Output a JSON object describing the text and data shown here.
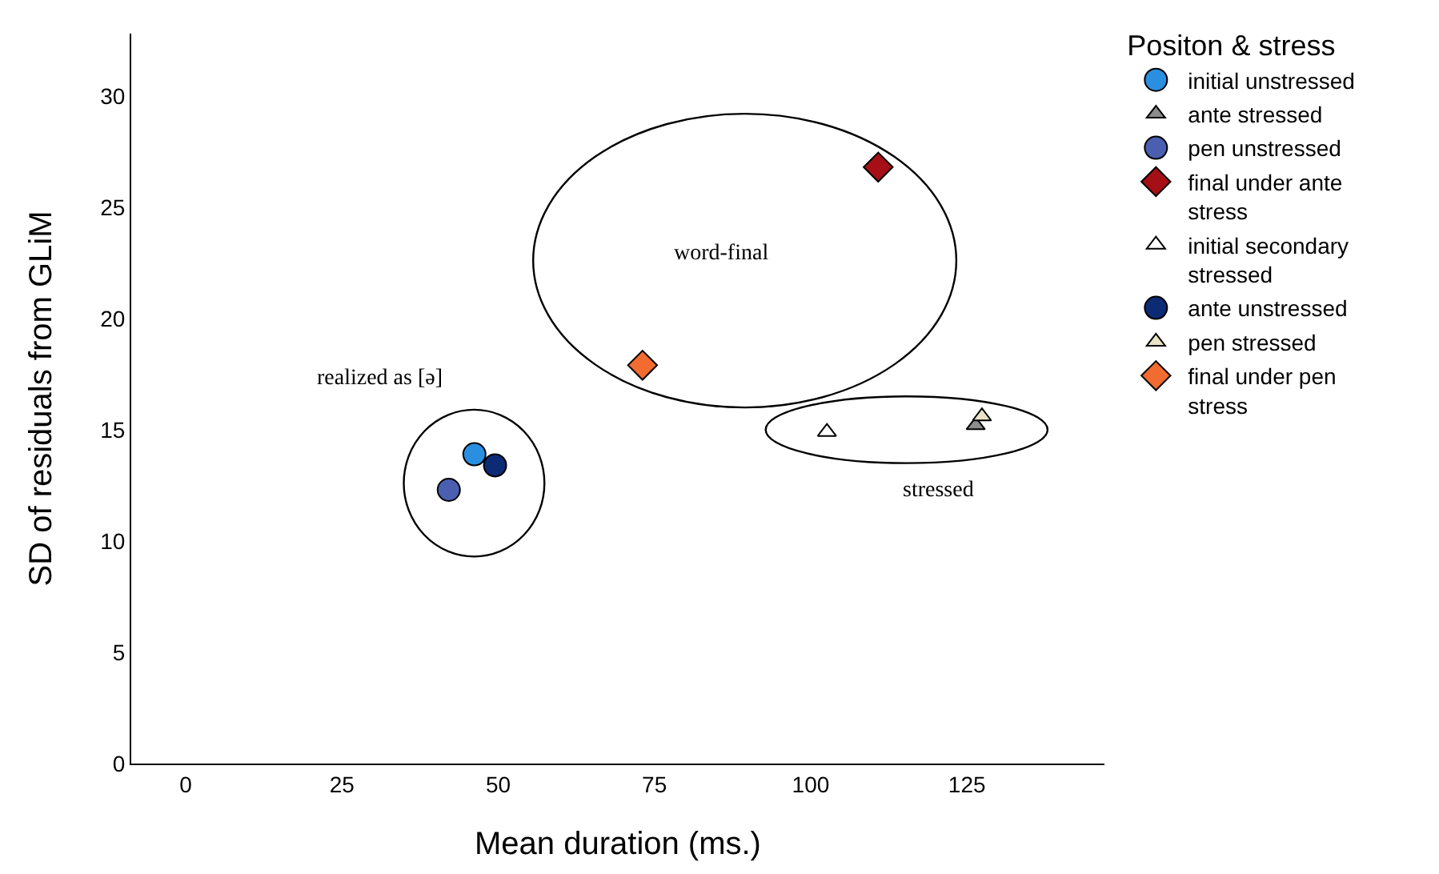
{
  "chart_data": {
    "type": "scatter",
    "xlabel": "Mean duration (ms.)",
    "ylabel": "SD of residuals from GLiM",
    "legend_title": "Positon & stress",
    "legend": "top right",
    "grid": false,
    "xlim": [
      -8.7,
      147
    ],
    "xticks": [
      0,
      25,
      50,
      75,
      100,
      125
    ],
    "ylim": [
      0,
      32.8
    ],
    "yticks": [
      0,
      5,
      10,
      15,
      20,
      25,
      30
    ],
    "annotations": [
      "realized as [ə]",
      "word-final",
      "stressed"
    ],
    "series": [
      {
        "name": "initial unstressed",
        "color": "#2a8fe0",
        "marker": "circle",
        "x": [
          46.2
        ],
        "values": [
          13.9
        ]
      },
      {
        "name": "ante stressed",
        "color": "#8c8c8c",
        "marker": "triangle",
        "x": [
          126.4
        ],
        "values": [
          15.2
        ]
      },
      {
        "name": "pen unstressed",
        "color": "#4a5fb0",
        "marker": "circle",
        "x": [
          42.1
        ],
        "values": [
          12.3
        ]
      },
      {
        "name": "final under ante stress",
        "color": "#a50f15",
        "marker": "diamond",
        "x": [
          110.8
        ],
        "values": [
          26.8
        ]
      },
      {
        "name": "initial secondary stressed",
        "color": "#ffffff",
        "marker": "triangle",
        "x": [
          102.6
        ],
        "values": [
          14.9
        ]
      },
      {
        "name": "ante unstressed",
        "color": "#0d2a75",
        "marker": "circle",
        "x": [
          49.5
        ],
        "values": [
          13.4
        ]
      },
      {
        "name": "pen stressed",
        "color": "#e8e4c4",
        "marker": "triangle",
        "x": [
          127.4
        ],
        "values": [
          15.6
        ]
      },
      {
        "name": "final under pen stress",
        "color": "#f26b30",
        "marker": "diamond",
        "x": [
          73.1
        ],
        "values": [
          17.9
        ]
      }
    ]
  }
}
